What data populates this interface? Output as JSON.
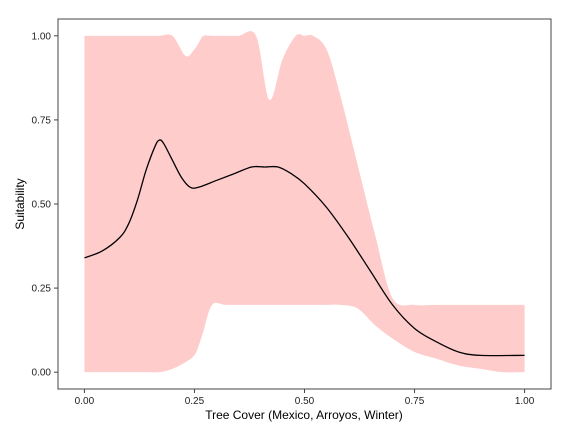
{
  "chart_data": {
    "type": "line",
    "title": "",
    "xlabel": "Tree Cover (Mexico, Arroyos, Winter)",
    "ylabel": "Suitability",
    "xlim": [
      -0.06,
      1.06
    ],
    "ylim": [
      -0.05,
      1.05
    ],
    "x_ticks": [
      0.0,
      0.25,
      0.5,
      0.75,
      1.0
    ],
    "x_tick_labels": [
      "0.00",
      "0.25",
      "0.50",
      "0.75",
      "1.00"
    ],
    "y_ticks": [
      0.0,
      0.25,
      0.5,
      0.75,
      1.0
    ],
    "y_tick_labels": [
      "0.00",
      "0.25",
      "0.50",
      "0.75",
      "1.00"
    ],
    "grid": false,
    "legend": "none",
    "colors": {
      "band": "#ffcccc",
      "line": "#000000",
      "frame": "#444444"
    },
    "band": {
      "name": "",
      "x": [
        0.0,
        0.05,
        0.1,
        0.14,
        0.17,
        0.2,
        0.23,
        0.25,
        0.26,
        0.27,
        0.29,
        0.32,
        0.35,
        0.39,
        0.42,
        0.45,
        0.48,
        0.5,
        0.52,
        0.55,
        0.58,
        0.62,
        0.66,
        0.7,
        0.75,
        0.8,
        0.85,
        0.9,
        0.95,
        1.0
      ],
      "upper": [
        1.0,
        1.0,
        1.0,
        1.0,
        1.0,
        1.0,
        0.94,
        0.96,
        0.98,
        1.0,
        1.0,
        1.0,
        1.0,
        1.0,
        0.81,
        0.93,
        1.0,
        1.0,
        1.0,
        0.96,
        0.83,
        0.62,
        0.41,
        0.22,
        0.2,
        0.2,
        0.2,
        0.2,
        0.2,
        0.2
      ],
      "lower": [
        0.0,
        0.0,
        0.0,
        0.0,
        0.0,
        0.01,
        0.03,
        0.05,
        0.08,
        0.12,
        0.2,
        0.2,
        0.2,
        0.2,
        0.2,
        0.2,
        0.2,
        0.2,
        0.2,
        0.2,
        0.2,
        0.19,
        0.14,
        0.1,
        0.06,
        0.04,
        0.02,
        0.01,
        0.0,
        0.0
      ]
    },
    "series": [
      {
        "name": "",
        "x": [
          0.0,
          0.04,
          0.08,
          0.1,
          0.12,
          0.14,
          0.16,
          0.17,
          0.18,
          0.2,
          0.22,
          0.24,
          0.26,
          0.3,
          0.34,
          0.38,
          0.41,
          0.44,
          0.47,
          0.5,
          0.55,
          0.6,
          0.65,
          0.7,
          0.75,
          0.8,
          0.85,
          0.9,
          1.0
        ],
        "y": [
          0.34,
          0.36,
          0.4,
          0.44,
          0.51,
          0.6,
          0.67,
          0.69,
          0.68,
          0.63,
          0.58,
          0.55,
          0.55,
          0.57,
          0.59,
          0.61,
          0.61,
          0.61,
          0.59,
          0.56,
          0.49,
          0.4,
          0.3,
          0.2,
          0.13,
          0.09,
          0.06,
          0.05,
          0.05
        ]
      }
    ]
  }
}
